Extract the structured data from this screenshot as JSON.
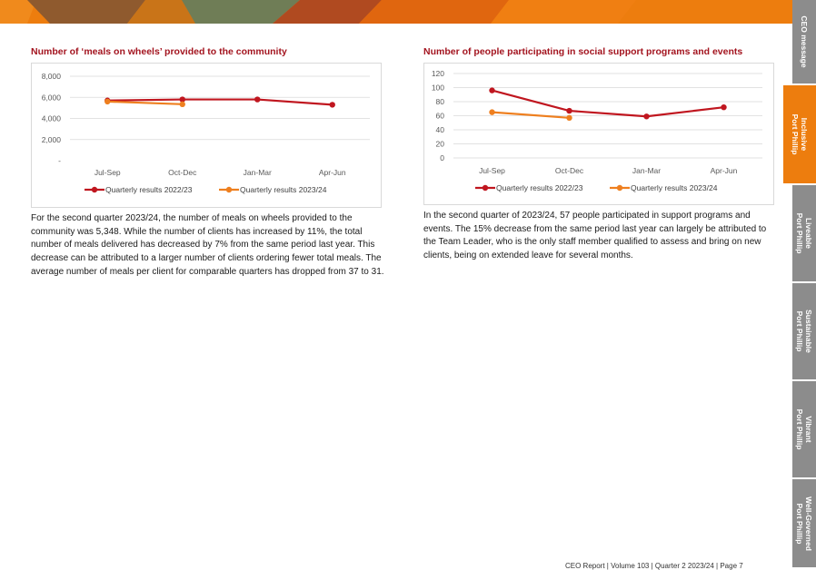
{
  "colors": {
    "accent": "#ed7d0e",
    "title_red": "#a3141f",
    "series_2022_23": "#c0161f",
    "series_2023_24": "#ee7f1f",
    "tab_grey": "#8c8c8c"
  },
  "side_tabs": [
    {
      "label": "CEO message",
      "active": false
    },
    {
      "label": "Inclusive\nPort Phillip",
      "active": true
    },
    {
      "label": "Liveable\nPort Phillip",
      "active": false
    },
    {
      "label": "Sustainable\nPort Phillip",
      "active": false
    },
    {
      "label": "Vibrant\nPort Phillip",
      "active": false
    },
    {
      "label": "Well-Governed\nPort Phillip",
      "active": false
    }
  ],
  "left": {
    "title": "Number of ‘meals on wheels’ provided to the community",
    "paragraph": "For the second quarter 2023/24, the number of meals on wheels provided to the community was 5,348. While the number of clients has increased by 11%, the total number of meals delivered has decreased by 7% from the same period last year. This decrease can be attributed to a larger number of clients ordering fewer total meals. The average number of meals per client for comparable quarters has dropped from 37 to 31."
  },
  "right": {
    "title": "Number of people participating in social support programs and events",
    "paragraph": "In the second quarter of 2023/24, 57 people participated in support programs and events. The 15% decrease from the same period last year can largely be attributed to the Team Leader, who is the only staff member qualified to assess and bring on new clients, being on extended leave for several months."
  },
  "footer": "CEO Report | Volume 103 | Quarter 2 2023/24 | Page 7",
  "chart_data": [
    {
      "type": "line",
      "title": "Number of ‘meals on wheels’ provided to the community",
      "categories": [
        "Jul-Sep",
        "Oct-Dec",
        "Jan-Mar",
        "Apr-Jun"
      ],
      "ylim": [
        0,
        8000
      ],
      "yticks": [
        0,
        2000,
        4000,
        6000,
        8000
      ],
      "ytick_labels": [
        "-",
        "2,000",
        "4,000",
        "6,000",
        "8,000"
      ],
      "grid": true,
      "legend": "bottom",
      "series": [
        {
          "name": "Quarterly results 2022/23",
          "values": [
            5700,
            5800,
            5800,
            5300
          ]
        },
        {
          "name": "Quarterly results 2023/24",
          "values": [
            5600,
            5348,
            null,
            null
          ]
        }
      ]
    },
    {
      "type": "line",
      "title": "Number of people participating in social support programs and events",
      "categories": [
        "Jul-Sep",
        "Oct-Dec",
        "Jan-Mar",
        "Apr-Jun"
      ],
      "ylim": [
        0,
        120
      ],
      "yticks": [
        0,
        20,
        40,
        60,
        80,
        100,
        120
      ],
      "ytick_labels": [
        "0",
        "20",
        "40",
        "60",
        "80",
        "100",
        "120"
      ],
      "grid": true,
      "legend": "bottom",
      "series": [
        {
          "name": "Quarterly results 2022/23",
          "values": [
            96,
            67,
            59,
            72
          ]
        },
        {
          "name": "Quarterly results 2023/24",
          "values": [
            65,
            57,
            null,
            null
          ]
        }
      ]
    }
  ]
}
